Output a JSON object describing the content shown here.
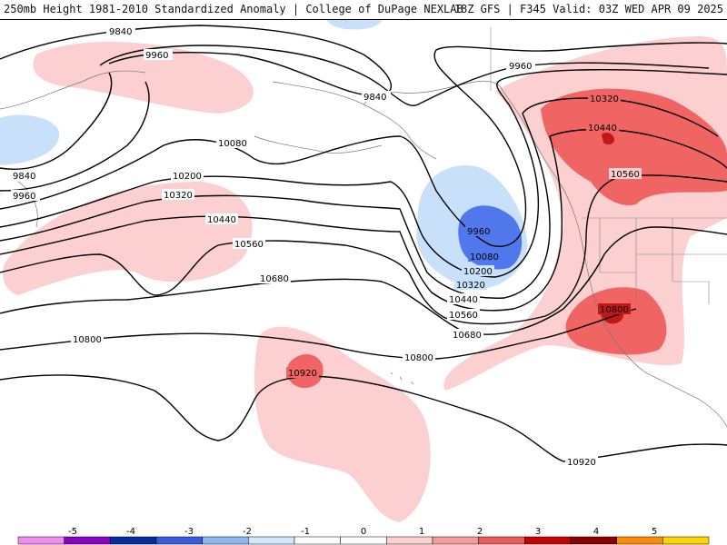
{
  "header": {
    "title_left": "250mb Height 1981-2010 Standardized Anomaly | College of DuPage NEXLAB",
    "title_right": "18Z GFS | F345 Valid: 03Z WED APR 09 2025"
  },
  "contour_labels": [
    "9840",
    "9960",
    "9840",
    "9960",
    "9840",
    "9960",
    "10080",
    "10200",
    "10320",
    "10440",
    "10560",
    "10680",
    "10800",
    "10920",
    "9960",
    "10080",
    "10200",
    "10320",
    "10440",
    "10560",
    "10680",
    "10800",
    "10920",
    "10320",
    "10440",
    "10560",
    "10800"
  ],
  "colorbar": {
    "ticks": [
      "-5",
      "-4",
      "-3",
      "-2",
      "-1",
      "0",
      "1",
      "2",
      "3",
      "4",
      "5"
    ],
    "colors": [
      "#f08cf0",
      "#8a00c8",
      "#0a2aa0",
      "#3a5ae0",
      "#8fb4f0",
      "#d4e6fa",
      "#ffffff",
      "#ffffff",
      "#ffd0d0",
      "#f89a9a",
      "#ec5a5a",
      "#c80000",
      "#8a0000",
      "#ff8c00",
      "#ffd400"
    ]
  },
  "anomaly_colors": {
    "light_pink": "#fcd0d0",
    "medium_red": "#f06464",
    "dark_red": "#c01818",
    "light_blue": "#c8e0fa",
    "medium_blue": "#5078ec"
  }
}
